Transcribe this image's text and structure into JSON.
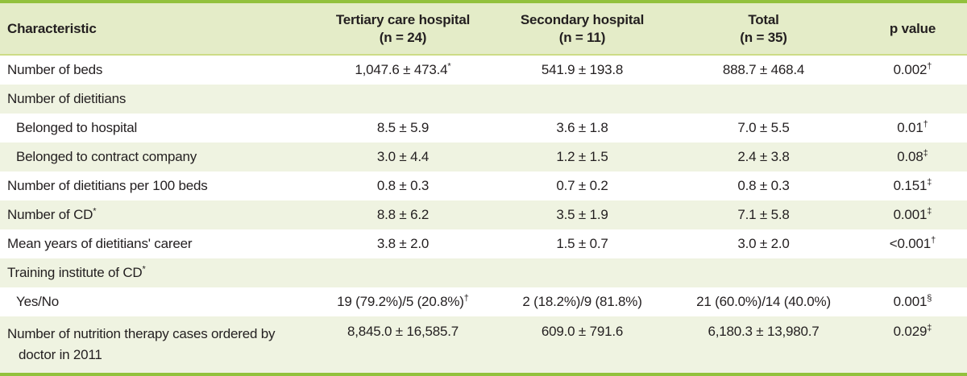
{
  "colors": {
    "border_green": "#92c13d",
    "header_bg": "#e4ecc8",
    "header_underline": "#cddc86",
    "shaded_row_bg": "#eff3e1",
    "text": "#231f20"
  },
  "table": {
    "columns": [
      {
        "key": "label",
        "header": "Characteristic",
        "sub": ""
      },
      {
        "key": "tertiary",
        "header": "Tertiary care hospital",
        "sub": "(n = 24)"
      },
      {
        "key": "secondary",
        "header": "Secondary hospital",
        "sub": "(n = 11)"
      },
      {
        "key": "total",
        "header": "Total",
        "sub": "(n = 35)"
      },
      {
        "key": "p",
        "header": "p value",
        "sub": ""
      }
    ],
    "rows": [
      {
        "label": "Number of beds",
        "indent": false,
        "shaded": false,
        "cells": {
          "tertiary": {
            "v": "1,047.6 ± 473.4",
            "sup": "*"
          },
          "secondary": {
            "v": "541.9 ± 193.8"
          },
          "total": {
            "v": "888.7 ± 468.4"
          },
          "p": {
            "v": "0.002",
            "sup": "†"
          }
        }
      },
      {
        "label": "Number of dietitians",
        "indent": false,
        "shaded": true,
        "cells": {}
      },
      {
        "label": "Belonged to hospital",
        "indent": true,
        "shaded": false,
        "cells": {
          "tertiary": {
            "v": "8.5 ± 5.9"
          },
          "secondary": {
            "v": "3.6 ± 1.8"
          },
          "total": {
            "v": "7.0 ± 5.5"
          },
          "p": {
            "v": "0.01",
            "sup": "†"
          }
        }
      },
      {
        "label": "Belonged to contract company",
        "indent": true,
        "shaded": true,
        "cells": {
          "tertiary": {
            "v": "3.0 ± 4.4"
          },
          "secondary": {
            "v": "1.2 ± 1.5"
          },
          "total": {
            "v": "2.4 ± 3.8"
          },
          "p": {
            "v": "0.08",
            "sup": "‡"
          }
        }
      },
      {
        "label": "Number of dietitians per 100 beds",
        "indent": false,
        "shaded": false,
        "cells": {
          "tertiary": {
            "v": "0.8 ± 0.3"
          },
          "secondary": {
            "v": "0.7 ± 0.2"
          },
          "total": {
            "v": "0.8 ± 0.3"
          },
          "p": {
            "v": "0.151",
            "sup": "‡"
          }
        }
      },
      {
        "label": "Number of CD",
        "label_sup": "*",
        "indent": false,
        "shaded": true,
        "cells": {
          "tertiary": {
            "v": "8.8 ± 6.2"
          },
          "secondary": {
            "v": "3.5 ± 1.9"
          },
          "total": {
            "v": "7.1 ± 5.8"
          },
          "p": {
            "v": "0.001",
            "sup": "‡"
          }
        }
      },
      {
        "label": "Mean years of dietitians' career",
        "indent": false,
        "shaded": false,
        "cells": {
          "tertiary": {
            "v": "3.8 ± 2.0"
          },
          "secondary": {
            "v": "1.5 ± 0.7"
          },
          "total": {
            "v": "3.0 ± 2.0"
          },
          "p": {
            "v": "<0.001",
            "sup": "†"
          }
        }
      },
      {
        "label": "Training institute of CD",
        "label_sup": "*",
        "indent": false,
        "shaded": true,
        "cells": {}
      },
      {
        "label": "Yes/No",
        "indent": true,
        "shaded": false,
        "cells": {
          "tertiary": {
            "v": "19 (79.2%)/5 (20.8%)",
            "sup": "†"
          },
          "secondary": {
            "v": "2 (18.2%)/9 (81.8%)"
          },
          "total": {
            "v": "21 (60.0%)/14 (40.0%)"
          },
          "p": {
            "v": "0.001",
            "sup": "§"
          }
        }
      },
      {
        "label": "Number of nutrition therapy cases ordered by doctor in 2011",
        "indent": false,
        "shaded": true,
        "tall": true,
        "cells": {
          "tertiary": {
            "v": "8,845.0 ± 16,585.7"
          },
          "secondary": {
            "v": "609.0 ± 791.6"
          },
          "total": {
            "v": "6,180.3 ± 13,980.7"
          },
          "p": {
            "v": "0.029",
            "sup": "‡"
          }
        }
      }
    ]
  }
}
